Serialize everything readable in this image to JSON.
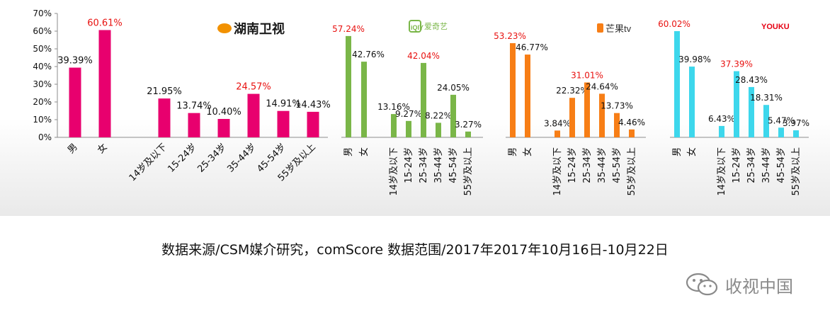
{
  "chart_data": {
    "type": "bar",
    "y_axis": {
      "ticks": [
        "70%",
        "60%",
        "50%",
        "40%",
        "30%",
        "20%",
        "10%",
        "0%"
      ],
      "ylim": [
        0,
        70
      ]
    },
    "grid": false,
    "panels": [
      {
        "platform": "湖南卫视",
        "color": "#e8006e",
        "categories": [
          "男",
          "女",
          "14岁及以下",
          "15-24岁",
          "25-34岁",
          "35-44岁",
          "45-54岁",
          "55岁及以上"
        ],
        "values": [
          39.39,
          60.61,
          21.95,
          13.74,
          10.4,
          24.57,
          14.91,
          14.43
        ],
        "labels": [
          "39.39%",
          "60.61%",
          "21.95%",
          "13.74%",
          "10.40%",
          "24.57%",
          "14.91%",
          "14.43%"
        ],
        "highlight": [
          1,
          5
        ]
      },
      {
        "platform": "爱奇艺",
        "color": "#7ab648",
        "categories": [
          "男",
          "女",
          "14岁及以下",
          "15-24岁",
          "25-34岁",
          "35-44岁",
          "45-54岁",
          "55岁及以上"
        ],
        "values": [
          57.24,
          42.76,
          13.16,
          9.27,
          42.04,
          8.22,
          24.05,
          3.27
        ],
        "labels": [
          "57.24%",
          "42.76%",
          "13.16%",
          "9.27%",
          "42.04%",
          "8.22%",
          "24.05%",
          "3.27%"
        ],
        "highlight": [
          0,
          4
        ]
      },
      {
        "platform": "芒果tv",
        "color": "#f77e16",
        "categories": [
          "男",
          "女",
          "14岁及以下",
          "15-24岁",
          "25-34岁",
          "35-44岁",
          "45-54岁",
          "55岁及以上"
        ],
        "values": [
          53.23,
          46.77,
          3.84,
          22.32,
          31.01,
          24.64,
          13.73,
          4.46
        ],
        "labels": [
          "53.23%",
          "46.77%",
          "3.84%",
          "22.32%",
          "31.01%",
          "24.64%",
          "13.73%",
          "4.46%"
        ],
        "highlight": [
          0,
          4
        ]
      },
      {
        "platform": "YOUKU",
        "color": "#3dd7ec",
        "categories": [
          "男",
          "女",
          "14岁及以下",
          "15-24岁",
          "25-34岁",
          "35-44岁",
          "45-54岁",
          "55岁及以上"
        ],
        "values": [
          60.02,
          39.98,
          6.43,
          37.39,
          28.43,
          18.31,
          5.47,
          3.97
        ],
        "labels": [
          "60.02%",
          "39.98%",
          "6.43%",
          "37.39%",
          "28.43%",
          "18.31%",
          "5.47%",
          "3.97%"
        ],
        "highlight": [
          0,
          3
        ]
      }
    ]
  },
  "logos": {
    "hunan": "湖南卫视",
    "iqiyi_mark": "iQIY",
    "iqiyi_text": "爱奇艺",
    "mango": "芒果tv",
    "youku": "YOUKU"
  },
  "footer": {
    "source": "数据来源/CSM媒介研究，comScore  数据范围/2017年2017年10月16日-10月22日"
  },
  "watermark": {
    "text": "收视中国",
    "icon": "wechat-icon"
  },
  "colors": {
    "highlight_label": "#e8110f",
    "normal_label": "#111111",
    "axis": "#8c8c8c"
  }
}
